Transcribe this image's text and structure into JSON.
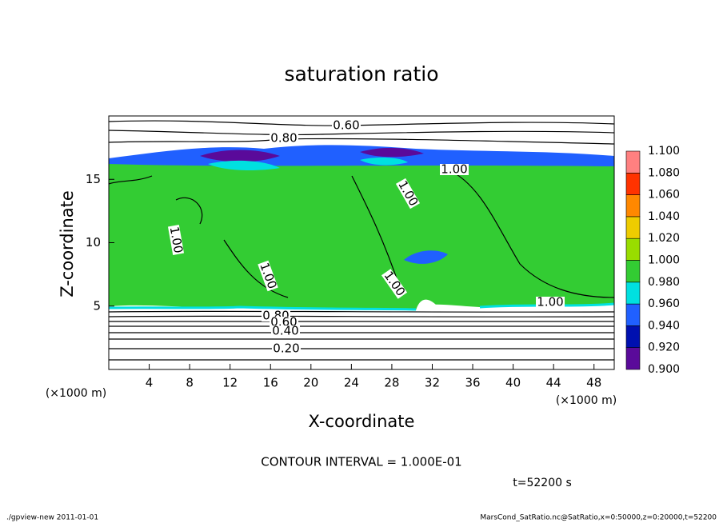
{
  "chart_data": {
    "type": "contour",
    "title": "saturation ratio",
    "x_label": "X-coordinate",
    "y_label": "Z-coordinate",
    "x_unit": "(×1000 m)",
    "y_unit": "(×1000 m)",
    "xlim": [
      0,
      50
    ],
    "xticks": [
      4,
      8,
      12,
      16,
      20,
      24,
      28,
      32,
      36,
      40,
      44,
      48
    ],
    "ylim": [
      0,
      20
    ],
    "yticks": [
      5,
      10,
      15
    ],
    "colorbar": {
      "levels": [
        {
          "value": 0.9,
          "label": "0.900"
        },
        {
          "value": 0.92,
          "label": "0.920"
        },
        {
          "value": 0.94,
          "label": "0.940"
        },
        {
          "value": 0.96,
          "label": "0.960"
        },
        {
          "value": 0.98,
          "label": "0.980"
        },
        {
          "value": 1.0,
          "label": "1.000"
        },
        {
          "value": 1.02,
          "label": "1.020"
        },
        {
          "value": 1.04,
          "label": "1.040"
        },
        {
          "value": 1.06,
          "label": "1.060"
        },
        {
          "value": 1.08,
          "label": "1.080"
        },
        {
          "value": 1.1,
          "label": "1.100"
        }
      ],
      "colors": [
        "#5a0a9a",
        "#0010b0",
        "#2060ff",
        "#00e0e0",
        "#33cc33",
        "#99dd00",
        "#eecc00",
        "#ff8800",
        "#ff3300",
        "#ff8080"
      ]
    },
    "contour_labels": [
      {
        "value": 0.6,
        "label": "0.60"
      },
      {
        "value": 0.8,
        "label": "0.80"
      },
      {
        "value": 1.0,
        "label": "1.00"
      },
      {
        "value": 1.0,
        "label": "1.00"
      },
      {
        "value": 1.0,
        "label": "1.00"
      },
      {
        "value": 1.0,
        "label": "1.00"
      },
      {
        "value": 1.0,
        "label": "1.00"
      },
      {
        "value": 1.0,
        "label": "1.00"
      },
      {
        "value": 0.8,
        "label": "0.80"
      },
      {
        "value": 0.6,
        "label": "0.60"
      },
      {
        "value": 0.4,
        "label": "0.40"
      },
      {
        "value": 0.2,
        "label": "0.20"
      }
    ],
    "contour_interval": "CONTOUR INTERVAL = 1.000E-01",
    "time_label": "t=52200 s",
    "footer_left": "./gpview-new  2011-01-01",
    "footer_right": "MarsCond_SatRatio.nc@SatRatio,x=0:50000,z=0:20000,t=52200"
  }
}
